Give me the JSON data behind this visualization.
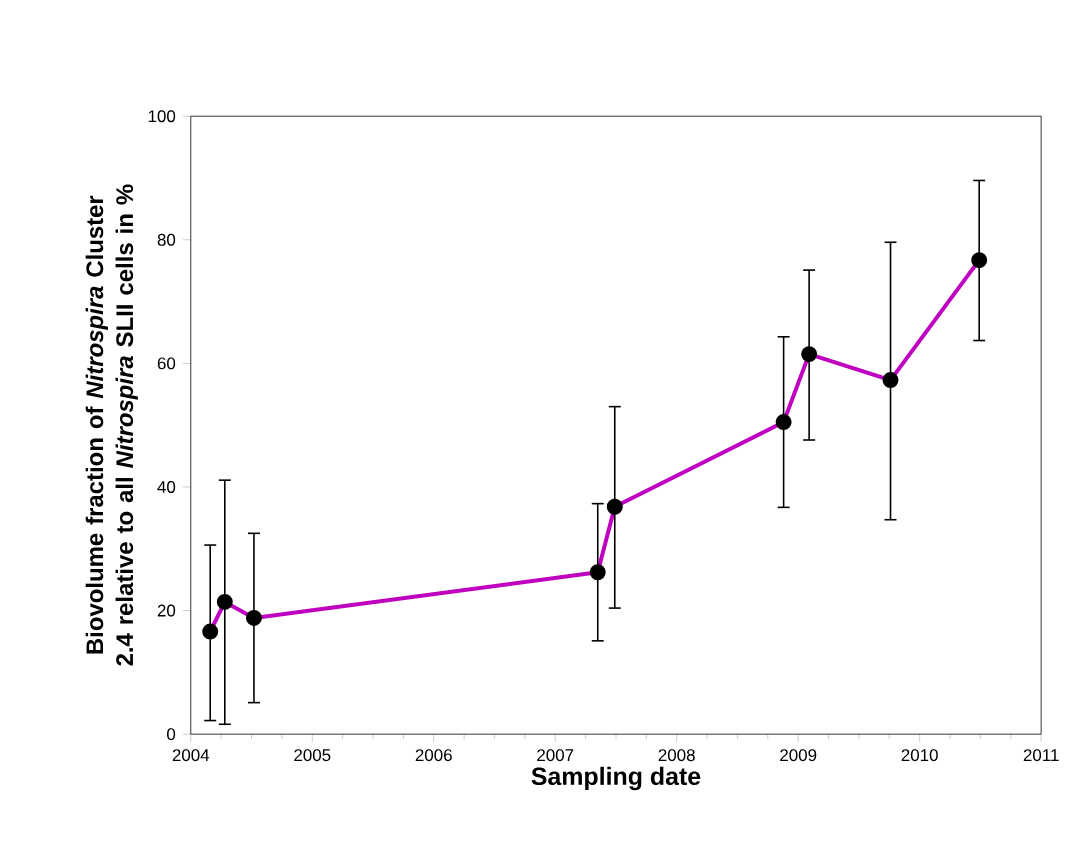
{
  "chart_data": {
    "type": "line",
    "xlabel": "Sampling date",
    "ylabel": "Biovolume fraction of *Nitrospira* Cluster 2.4 relative to all *Nitrospira* SLII cells in %",
    "x": [
      2004.16,
      2004.28,
      2004.52,
      2007.35,
      2007.49,
      2008.88,
      2009.09,
      2009.76,
      2010.49
    ],
    "series": [
      {
        "color": "#c000c0",
        "values": [
          16.6,
          21.4,
          18.8,
          26.2,
          36.8,
          50.5,
          61.5,
          57.3,
          76.7
        ],
        "errors": [
          [
            2.2,
            30.6
          ],
          [
            1.6,
            41.1
          ],
          [
            5.1,
            32.5
          ],
          [
            15.1,
            37.3
          ],
          [
            20.4,
            53.0
          ],
          [
            36.7,
            64.3
          ],
          [
            47.6,
            75.1
          ],
          [
            34.7,
            79.6
          ],
          [
            63.7,
            89.6
          ]
        ]
      }
    ],
    "xlim": [
      2004,
      2011
    ],
    "ylim": [
      0,
      100
    ],
    "xticks": [
      2004,
      2005,
      2006,
      2007,
      2008,
      2009,
      2010,
      2011
    ],
    "yticks": [
      0,
      20,
      40,
      60,
      80,
      100
    ],
    "marker": "circle",
    "line_style": "solid"
  }
}
